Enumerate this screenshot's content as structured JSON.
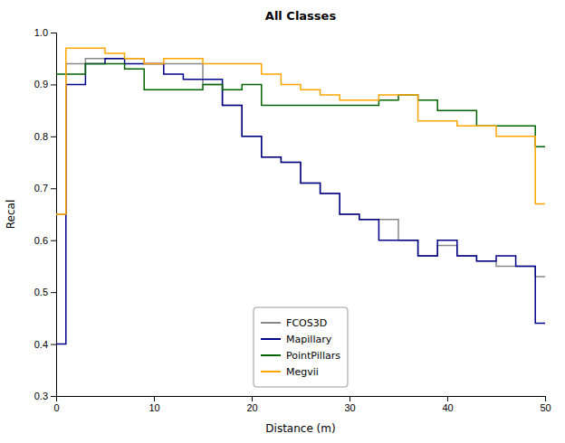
{
  "chart_data": {
    "type": "step",
    "title": "All Classes",
    "x_label": "Distance (m)",
    "y_label": "Recal",
    "x": [
      0,
      1,
      3,
      5,
      7,
      9,
      11,
      13,
      15,
      17,
      19,
      21,
      23,
      25,
      27,
      29,
      31,
      33,
      35,
      37,
      39,
      41,
      43,
      45,
      47,
      49,
      50
    ],
    "series": [
      {
        "name": "FCOS3D",
        "color": "#888888",
        "values": [
          0.65,
          0.94,
          0.95,
          0.95,
          0.95,
          0.94,
          0.94,
          0.94,
          0.9,
          0.86,
          0.8,
          0.76,
          0.75,
          0.71,
          0.69,
          0.65,
          0.64,
          0.64,
          0.6,
          0.57,
          0.59,
          0.57,
          0.56,
          0.55,
          0.55,
          0.53,
          0.53
        ]
      },
      {
        "name": "Mapillary",
        "color": "#00008B",
        "values": [
          0.4,
          0.9,
          0.94,
          0.95,
          0.94,
          0.94,
          0.92,
          0.91,
          0.91,
          0.86,
          0.8,
          0.76,
          0.75,
          0.71,
          0.69,
          0.65,
          0.64,
          0.6,
          0.6,
          0.57,
          0.6,
          0.57,
          0.56,
          0.57,
          0.55,
          0.44,
          0.44
        ]
      },
      {
        "name": "PointPillars",
        "color": "#006400",
        "values": [
          0.92,
          0.92,
          0.94,
          0.94,
          0.93,
          0.89,
          0.89,
          0.89,
          0.9,
          0.89,
          0.9,
          0.86,
          0.86,
          0.86,
          0.86,
          0.86,
          0.86,
          0.87,
          0.88,
          0.87,
          0.85,
          0.85,
          0.82,
          0.82,
          0.82,
          0.78,
          0.78
        ]
      },
      {
        "name": "Megvii",
        "color": "#FFA500",
        "values": [
          0.65,
          0.97,
          0.97,
          0.96,
          0.95,
          0.94,
          0.95,
          0.95,
          0.94,
          0.94,
          0.94,
          0.92,
          0.9,
          0.89,
          0.88,
          0.87,
          0.87,
          0.88,
          0.88,
          0.83,
          0.83,
          0.82,
          0.82,
          0.8,
          0.8,
          0.67,
          0.67
        ]
      }
    ],
    "xlim": [
      0,
      50
    ],
    "ylim": [
      0.3,
      1.0
    ],
    "xticks": [
      0,
      10,
      20,
      30,
      40,
      50
    ],
    "yticks": [
      0.3,
      0.4,
      0.5,
      0.6,
      0.7,
      0.8,
      0.9,
      {
        "value": 1.0,
        "label": "1.0"
      }
    ],
    "grid": false,
    "legend": "bottom"
  }
}
